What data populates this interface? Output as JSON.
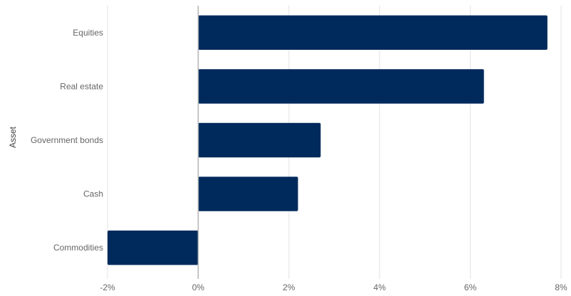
{
  "chart_data": {
    "type": "bar",
    "orientation": "horizontal",
    "categories": [
      "Equities",
      "Real estate",
      "Government bonds",
      "Cash",
      "Commodities"
    ],
    "values": [
      7.7,
      6.3,
      2.7,
      2.2,
      -2.0
    ],
    "value_unit": "%",
    "xlim": [
      -2,
      8
    ],
    "xticks": [
      -2,
      0,
      2,
      4,
      6,
      8
    ],
    "xtick_labels": [
      "-2%",
      "0%",
      "2%",
      "4%",
      "6%",
      "8%"
    ],
    "xlabel": "",
    "ylabel": "Asset",
    "title": "",
    "grid": "vertical",
    "bar_color": "#002a5c",
    "grid_color": "#e3e3e3",
    "zero_line_color": "#b3b3b3"
  }
}
